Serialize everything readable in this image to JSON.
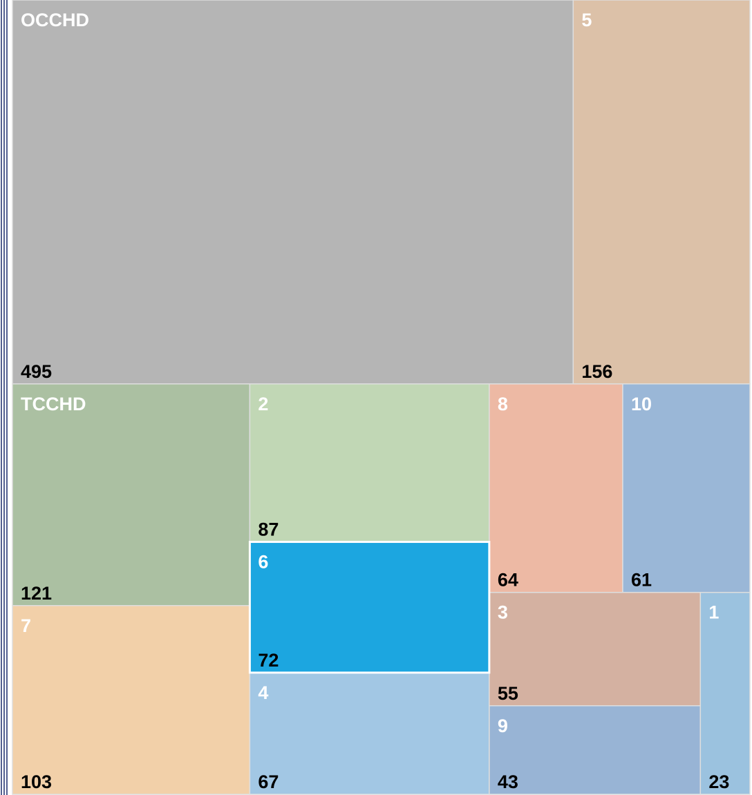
{
  "chart_data": {
    "type": "treemap",
    "categories": [
      "OCCHD",
      "5",
      "TCCHD",
      "2",
      "8",
      "10",
      "7",
      "6",
      "4",
      "3",
      "9",
      "1"
    ],
    "values": [
      495,
      156,
      121,
      87,
      64,
      61,
      103,
      72,
      67,
      55,
      43,
      23
    ],
    "colors": [
      "#b5b5b5",
      "#dcc1a8",
      "#abc0a2",
      "#c1d7b5",
      "#edb9a4",
      "#9ab7d7",
      "#f2d0a9",
      "#1ca6e0",
      "#a2c7e4",
      "#d4b1a1",
      "#98b4d5",
      "#9bc2df"
    ],
    "selected": "6"
  }
}
